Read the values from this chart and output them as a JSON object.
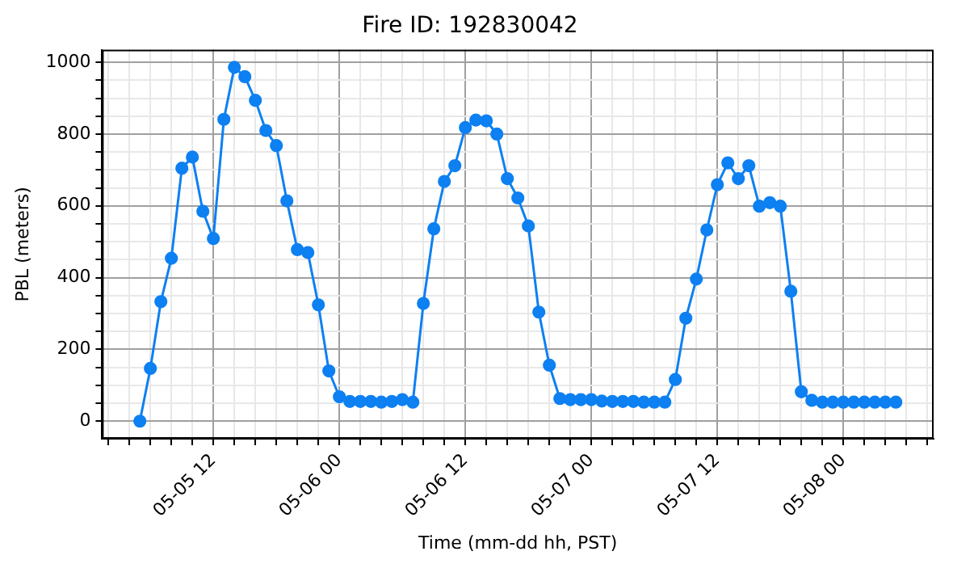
{
  "chart_data": {
    "type": "line",
    "title": "Fire ID: 192830042",
    "xlabel": "Time (mm-dd hh, PST)",
    "ylabel": "PBL (meters)",
    "x": [
      "--05-05T05:00",
      "--05-05T06:00",
      "--05-05T07:00",
      "--05-05T08:00",
      "--05-05T09:00",
      "--05-05T10:00",
      "--05-05T11:00",
      "--05-05T12:00",
      "--05-05T13:00",
      "--05-05T14:00",
      "--05-05T15:00",
      "--05-05T16:00",
      "--05-05T17:00",
      "--05-05T18:00",
      "--05-05T19:00",
      "--05-05T20:00",
      "--05-05T21:00",
      "--05-05T22:00",
      "--05-05T23:00",
      "--05-06T00:00",
      "--05-06T01:00",
      "--05-06T02:00",
      "--05-06T03:00",
      "--05-06T04:00",
      "--05-06T05:00",
      "--05-06T06:00",
      "--05-06T07:00",
      "--05-06T08:00",
      "--05-06T09:00",
      "--05-06T10:00",
      "--05-06T11:00",
      "--05-06T12:00",
      "--05-06T13:00",
      "--05-06T14:00",
      "--05-06T15:00",
      "--05-06T16:00",
      "--05-06T17:00",
      "--05-06T18:00",
      "--05-06T19:00",
      "--05-06T20:00",
      "--05-06T21:00",
      "--05-06T22:00",
      "--05-06T23:00",
      "--05-07T00:00",
      "--05-07T01:00",
      "--05-07T02:00",
      "--05-07T03:00",
      "--05-07T04:00",
      "--05-07T05:00",
      "--05-07T06:00",
      "--05-07T07:00",
      "--05-07T08:00",
      "--05-07T09:00",
      "--05-07T10:00",
      "--05-07T11:00",
      "--05-07T12:00",
      "--05-07T13:00",
      "--05-07T14:00",
      "--05-07T15:00",
      "--05-07T16:00",
      "--05-07T17:00",
      "--05-07T18:00",
      "--05-07T19:00",
      "--05-07T20:00",
      "--05-07T21:00",
      "--05-07T22:00",
      "--05-07T23:00",
      "--05-08T00:00",
      "--05-08T01:00",
      "--05-08T02:00",
      "--05-08T03:00",
      "--05-08T04:00",
      "--05-08T05:00"
    ],
    "series": [
      {
        "color": "#0d80f2",
        "values": [
          0,
          147,
          333,
          454,
          705,
          736,
          585,
          509,
          841,
          986,
          960,
          894,
          810,
          768,
          614,
          478,
          470,
          324,
          140,
          68,
          55,
          55,
          55,
          53,
          55,
          60,
          53,
          328,
          536,
          668,
          712,
          818,
          839,
          837,
          800,
          676,
          622,
          544,
          304,
          156,
          63,
          60,
          60,
          60,
          56,
          55,
          55,
          55,
          53,
          53,
          53,
          116,
          287,
          396,
          533,
          659,
          720,
          676,
          712,
          599,
          609,
          599,
          362,
          82,
          58,
          53,
          53,
          53,
          53,
          53,
          53,
          53,
          53
        ]
      }
    ],
    "xlim": [
      "--05-05T01:24",
      "--05-08T08:36"
    ],
    "xticks": [
      {
        "value": "--05-05T02:00",
        "label": null
      },
      {
        "value": "--05-05T04:00",
        "label": null
      },
      {
        "value": "--05-05T06:00",
        "label": null
      },
      {
        "value": "--05-05T08:00",
        "label": null
      },
      {
        "value": "--05-05T10:00",
        "label": null
      },
      {
        "value": "--05-05T12:00",
        "label": "05-05 12"
      },
      {
        "value": "--05-05T14:00",
        "label": null
      },
      {
        "value": "--05-05T16:00",
        "label": null
      },
      {
        "value": "--05-05T18:00",
        "label": null
      },
      {
        "value": "--05-05T20:00",
        "label": null
      },
      {
        "value": "--05-05T22:00",
        "label": null
      },
      {
        "value": "--05-06T00:00",
        "label": "05-06 00"
      },
      {
        "value": "--05-06T02:00",
        "label": null
      },
      {
        "value": "--05-06T04:00",
        "label": null
      },
      {
        "value": "--05-06T06:00",
        "label": null
      },
      {
        "value": "--05-06T08:00",
        "label": null
      },
      {
        "value": "--05-06T10:00",
        "label": null
      },
      {
        "value": "--05-06T12:00",
        "label": "05-06 12"
      },
      {
        "value": "--05-06T14:00",
        "label": null
      },
      {
        "value": "--05-06T16:00",
        "label": null
      },
      {
        "value": "--05-06T18:00",
        "label": null
      },
      {
        "value": "--05-06T20:00",
        "label": null
      },
      {
        "value": "--05-06T22:00",
        "label": null
      },
      {
        "value": "--05-07T00:00",
        "label": "05-07 00"
      },
      {
        "value": "--05-07T02:00",
        "label": null
      },
      {
        "value": "--05-07T04:00",
        "label": null
      },
      {
        "value": "--05-07T06:00",
        "label": null
      },
      {
        "value": "--05-07T08:00",
        "label": null
      },
      {
        "value": "--05-07T10:00",
        "label": null
      },
      {
        "value": "--05-07T12:00",
        "label": "05-07 12"
      },
      {
        "value": "--05-07T14:00",
        "label": null
      },
      {
        "value": "--05-07T16:00",
        "label": null
      },
      {
        "value": "--05-07T18:00",
        "label": null
      },
      {
        "value": "--05-07T20:00",
        "label": null
      },
      {
        "value": "--05-07T22:00",
        "label": null
      },
      {
        "value": "--05-08T00:00",
        "label": "05-08 00"
      },
      {
        "value": "--05-08T02:00",
        "label": null
      },
      {
        "value": "--05-08T04:00",
        "label": null
      },
      {
        "value": "--05-08T06:00",
        "label": null
      },
      {
        "value": "--05-08T08:00",
        "label": null
      }
    ],
    "ylim": [
      -49,
      1035
    ],
    "yticks": [
      0,
      {
        "value": 50,
        "label": null
      },
      {
        "value": 100,
        "label": null
      },
      {
        "value": 150,
        "label": null
      },
      200,
      {
        "value": 250,
        "label": null
      },
      {
        "value": 300,
        "label": null
      },
      {
        "value": 350,
        "label": null
      },
      400,
      {
        "value": 450,
        "label": null
      },
      {
        "value": 500,
        "label": null
      },
      {
        "value": 550,
        "label": null
      },
      600,
      {
        "value": 650,
        "label": null
      },
      {
        "value": 700,
        "label": null
      },
      {
        "value": 750,
        "label": null
      },
      800,
      {
        "value": 850,
        "label": null
      },
      {
        "value": 900,
        "label": null
      },
      {
        "value": 950,
        "label": null
      },
      1000
    ],
    "grid": true,
    "marker": "circle",
    "line_style": "solid",
    "legend": false
  }
}
